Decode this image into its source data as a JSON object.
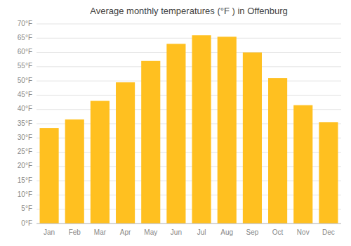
{
  "chart_data": {
    "type": "bar",
    "title": "Average monthly temperatures (°F ) in Offenburg",
    "categories": [
      "Jan",
      "Feb",
      "Mar",
      "Apr",
      "May",
      "Jun",
      "Jul",
      "Aug",
      "Sep",
      "Oct",
      "Nov",
      "Dec"
    ],
    "values": [
      33.5,
      36.5,
      43.0,
      49.5,
      57.0,
      63.0,
      66.0,
      65.5,
      60.0,
      51.0,
      41.5,
      35.5
    ],
    "color": "#FFC020",
    "ylim": [
      0,
      70
    ],
    "yticks": [
      {
        "value": 0,
        "label": "0°F"
      },
      {
        "value": 5,
        "label": "5°F"
      },
      {
        "value": 10,
        "label": "10°F"
      },
      {
        "value": 15,
        "label": "15°F"
      },
      {
        "value": 20,
        "label": "20°F"
      },
      {
        "value": 25,
        "label": "25°F"
      },
      {
        "value": 30,
        "label": "30°F"
      },
      {
        "value": 35,
        "label": "35°F"
      },
      {
        "value": 40,
        "label": "40°F"
      },
      {
        "value": 45,
        "label": "45°F"
      },
      {
        "value": 50,
        "label": "50°F"
      },
      {
        "value": 55,
        "label": "55°F"
      },
      {
        "value": 60,
        "label": "60°F"
      },
      {
        "value": 65,
        "label": "65°F"
      },
      {
        "value": 70,
        "label": "70°F"
      }
    ],
    "grid": true
  }
}
